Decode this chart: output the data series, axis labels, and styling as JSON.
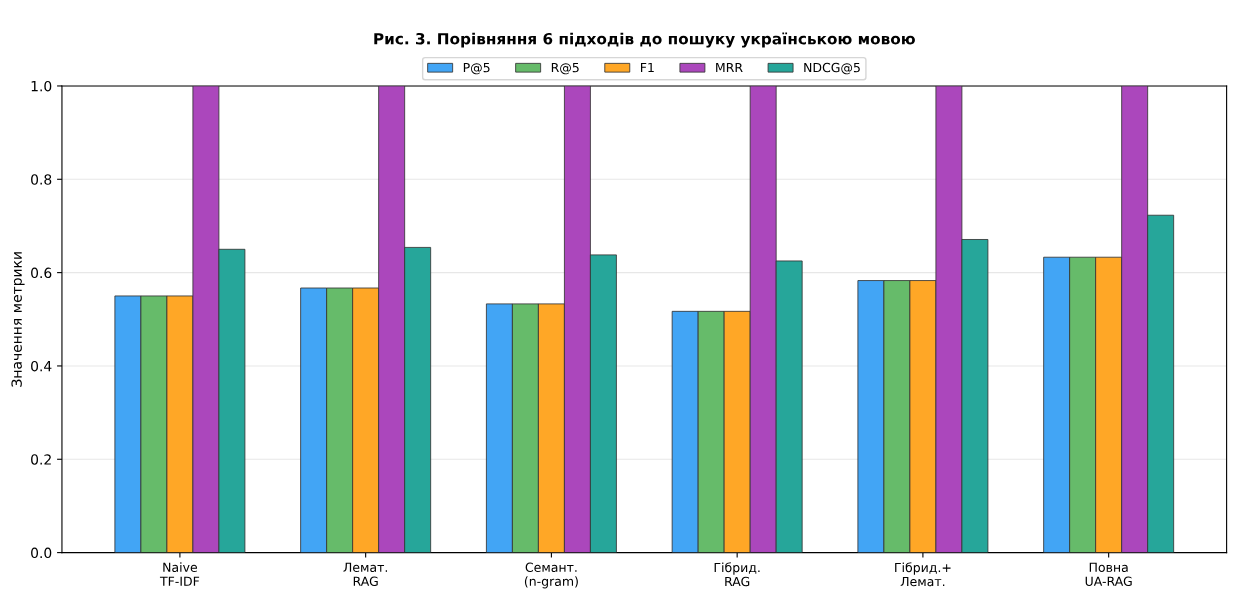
{
  "chart_data": {
    "type": "bar",
    "title": "Рис. 3. Порівняння 6 підходів до пошуку українською мовою",
    "ylabel": "Значення метрики",
    "categories": [
      "Naive\nTF-IDF",
      "Лемат.\nRAG",
      "Семант.\n(n-gram)",
      "Гібрид.\nRAG",
      "Гібрид.+\nЛемат.",
      "Повна\nUA-RAG"
    ],
    "series": [
      {
        "name": "P@5",
        "color": "#42a5f5",
        "values": [
          0.55,
          0.567,
          0.533,
          0.517,
          0.583,
          0.633
        ]
      },
      {
        "name": "R@5",
        "color": "#66bb6a",
        "values": [
          0.55,
          0.567,
          0.533,
          0.517,
          0.583,
          0.633
        ]
      },
      {
        "name": "F1",
        "color": "#ffa726",
        "values": [
          0.55,
          0.567,
          0.533,
          0.517,
          0.583,
          0.633
        ]
      },
      {
        "name": "MRR",
        "color": "#ab47bc",
        "values": [
          1.0,
          1.0,
          1.0,
          1.0,
          1.0,
          1.0
        ]
      },
      {
        "name": "NDCG@5",
        "color": "#26a69a",
        "values": [
          0.65,
          0.654,
          0.638,
          0.625,
          0.671,
          0.723
        ]
      }
    ],
    "ylim": [
      0.0,
      1.0
    ],
    "yticks": [
      {
        "value": 0,
        "label": "0.0"
      },
      {
        "value": 0.2,
        "label": "0.2"
      },
      {
        "value": 0.4,
        "label": "0.4"
      },
      {
        "value": 0.6,
        "label": "0.6"
      },
      {
        "value": 0.8,
        "label": "0.8"
      },
      {
        "value": 1.0,
        "label": "1.0"
      }
    ],
    "grid": "y",
    "legend": "top"
  }
}
